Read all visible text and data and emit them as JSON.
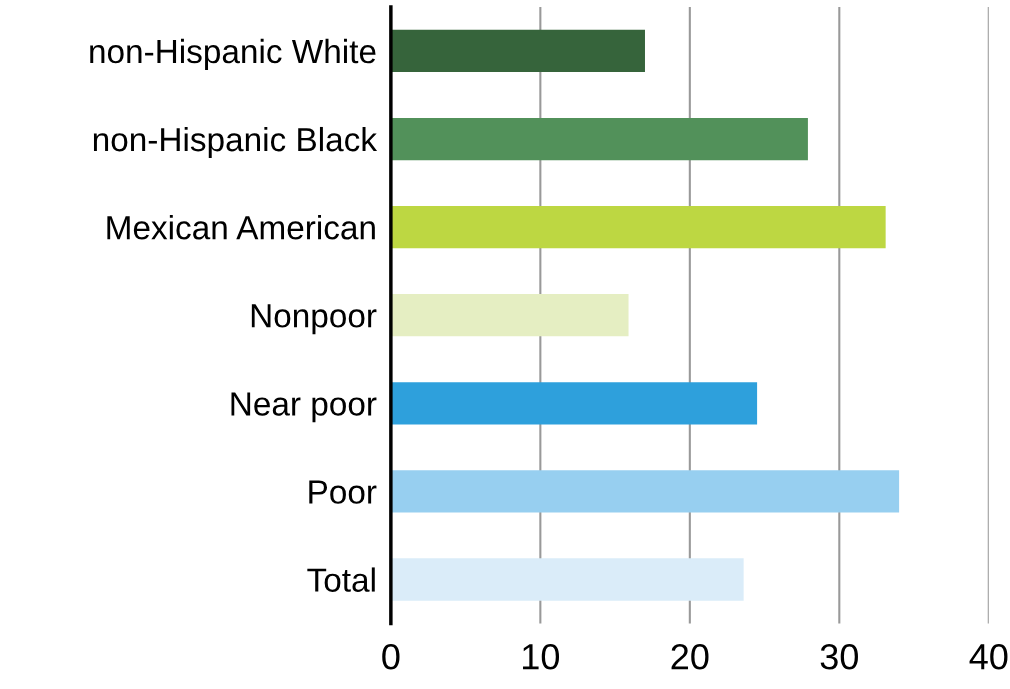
{
  "chart_data": {
    "type": "bar",
    "orientation": "horizontal",
    "categories": [
      "non-Hispanic White",
      "non-Hispanic Black",
      "Mexican American",
      "Nonpoor",
      "Near poor",
      "Poor",
      "Total"
    ],
    "values": [
      17.0,
      27.9,
      33.1,
      15.9,
      24.5,
      34.0,
      23.6
    ],
    "colors": [
      "#36643b",
      "#52915a",
      "#bdd742",
      "#e5eec2",
      "#2ea0dc",
      "#97cff0",
      "#daecf9"
    ],
    "xlim": [
      0,
      40
    ],
    "xticks": [
      0,
      10,
      20,
      30,
      40
    ],
    "grid": "x"
  }
}
